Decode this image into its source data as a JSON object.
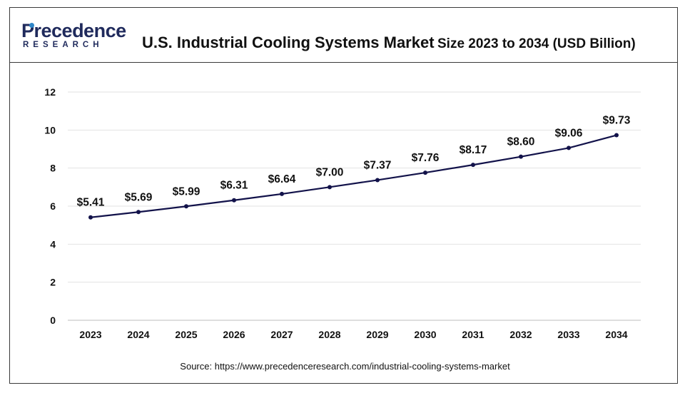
{
  "header": {
    "logo_name": "Precedence",
    "logo_sub": "RESEARCH",
    "title_main": "U.S. Industrial Cooling Systems Market",
    "title_sub": "Size 2023 to 2034 (USD Billion)"
  },
  "source": "Source: https://www.precedenceresearch.com/industrial-cooling-systems-market",
  "colors": {
    "line": "#12124a",
    "brand": "#1f2a5c",
    "logo_accent": "#2e86c8"
  },
  "chart_data": {
    "type": "line",
    "title": "U.S. Industrial Cooling Systems Market Size 2023 to 2034 (USD Billion)",
    "xlabel": "",
    "ylabel": "",
    "categories": [
      "2023",
      "2024",
      "2025",
      "2026",
      "2027",
      "2028",
      "2029",
      "2030",
      "2031",
      "2032",
      "2033",
      "2034"
    ],
    "series": [
      {
        "values": [
          5.41,
          5.69,
          5.99,
          6.31,
          6.64,
          7.0,
          7.37,
          7.76,
          8.17,
          8.6,
          9.06,
          9.73
        ]
      }
    ],
    "data_labels": [
      "$5.41",
      "$5.69",
      "$5.99",
      "$6.31",
      "$6.64",
      "$7.00",
      "$7.37",
      "$7.76",
      "$8.17",
      "$8.60",
      "$9.06",
      "$9.73"
    ],
    "y_ticks": [
      "0",
      "2",
      "4",
      "6",
      "8",
      "10",
      "12"
    ],
    "ylim": [
      0,
      12
    ],
    "grid": true,
    "legend": "none"
  }
}
